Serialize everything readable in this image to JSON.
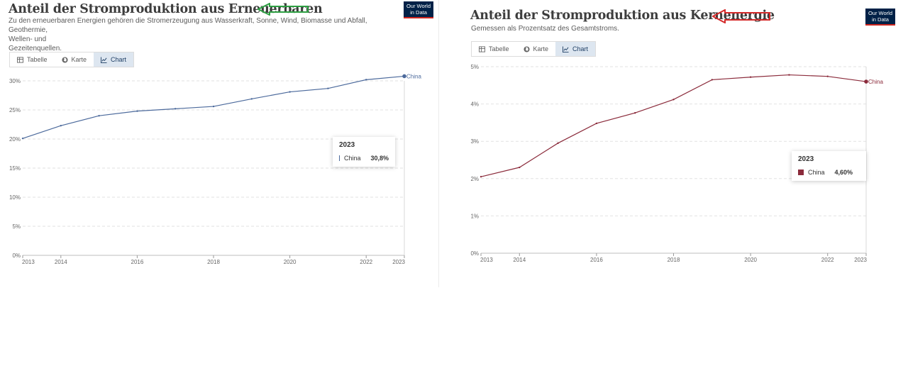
{
  "left": {
    "title": "Anteil der Stromproduktion aus Erneuerbaren",
    "subtitle_lines": [
      "Zu den erneuerbaren Energien gehören die Stromerzeugung aus Wasserkraft, Sonne, Wind, Biomasse und Abfall, Geothermie,",
      "Wellen- und",
      "Gezeitenquellen."
    ],
    "logo": [
      "Our World",
      "in Data"
    ],
    "tabs": [
      {
        "label": "Tabelle",
        "icon": "table-icon"
      },
      {
        "label": "Karte",
        "icon": "globe-icon"
      },
      {
        "label": "Chart",
        "icon": "line-chart-icon",
        "active": true
      }
    ],
    "arrow_color": "#2ea043",
    "tooltip": {
      "year": "2023",
      "series": "China",
      "value": "30,8%"
    }
  },
  "right": {
    "title": "Anteil der Stromproduktion aus Kernenergie",
    "subtitle_lines": [
      "Gemessen als Prozentsatz des Gesamtstroms."
    ],
    "logo": [
      "Our World",
      "in Data"
    ],
    "tabs": [
      {
        "label": "Tabelle",
        "icon": "table-icon"
      },
      {
        "label": "Karte",
        "icon": "globe-icon"
      },
      {
        "label": "Chart",
        "icon": "line-chart-icon",
        "active": true
      }
    ],
    "arrow_color": "#d42a2a",
    "tooltip": {
      "year": "2023",
      "series": "China",
      "value": "4,60%"
    }
  },
  "chart_data": [
    {
      "type": "line",
      "title": "Anteil der Stromproduktion aus Erneuerbaren",
      "x": [
        2013,
        2014,
        2015,
        2016,
        2017,
        2018,
        2019,
        2020,
        2021,
        2022,
        2023
      ],
      "series": [
        {
          "name": "China",
          "values": [
            20.1,
            22.3,
            24.0,
            24.8,
            25.2,
            25.6,
            26.9,
            28.1,
            28.7,
            30.2,
            30.8
          ],
          "color": "#4c6a9c"
        }
      ],
      "xticks": [
        "2013",
        "2014",
        "2016",
        "2018",
        "2020",
        "2022",
        "2023"
      ],
      "yticks": [
        "0%",
        "5%",
        "10%",
        "15%",
        "20%",
        "25%",
        "30%"
      ],
      "ylim": [
        0,
        30
      ],
      "grid": true
    },
    {
      "type": "line",
      "title": "Anteil der Stromproduktion aus Kernenergie",
      "x": [
        2013,
        2014,
        2015,
        2016,
        2017,
        2018,
        2019,
        2020,
        2021,
        2022,
        2023
      ],
      "series": [
        {
          "name": "China",
          "values": [
            2.05,
            2.3,
            2.95,
            3.48,
            3.76,
            4.12,
            4.65,
            4.72,
            4.78,
            4.74,
            4.6
          ],
          "color": "#8b2b3b"
        }
      ],
      "xticks": [
        "2013",
        "2014",
        "2016",
        "2018",
        "2020",
        "2022",
        "2023"
      ],
      "yticks": [
        "0%",
        "1%",
        "2%",
        "3%",
        "4%",
        "5%"
      ],
      "ylim": [
        0,
        5
      ],
      "grid": true
    }
  ]
}
